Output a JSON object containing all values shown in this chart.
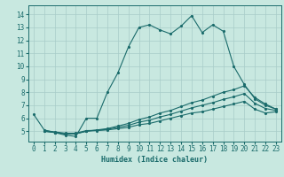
{
  "xlabel": "Humidex (Indice chaleur)",
  "xlim": [
    -0.5,
    23.5
  ],
  "ylim": [
    4.2,
    14.7
  ],
  "yticks": [
    5,
    6,
    7,
    8,
    9,
    10,
    11,
    12,
    13,
    14
  ],
  "xticks": [
    0,
    1,
    2,
    3,
    4,
    5,
    6,
    7,
    8,
    9,
    10,
    11,
    12,
    13,
    14,
    15,
    16,
    17,
    18,
    19,
    20,
    21,
    22,
    23
  ],
  "background_color": "#c8e8e0",
  "line_color": "#1a6b6b",
  "grid_color": "#a8ccc8",
  "curves": [
    {
      "x": [
        0,
        1,
        2,
        3,
        4,
        5,
        6,
        7,
        8,
        9,
        10,
        11,
        12,
        13,
        14,
        15,
        16,
        17,
        18,
        19,
        20,
        21,
        22,
        23
      ],
      "y": [
        6.3,
        5.1,
        4.9,
        4.7,
        4.6,
        6.0,
        6.0,
        8.0,
        9.5,
        11.5,
        13.0,
        13.2,
        12.8,
        12.5,
        13.1,
        13.9,
        12.6,
        13.2,
        12.7,
        10.0,
        8.6,
        7.5,
        7.0,
        6.7
      ]
    },
    {
      "x": [
        1,
        2,
        3,
        4,
        5,
        6,
        7,
        8,
        9,
        10,
        11,
        12,
        13,
        14,
        15,
        16,
        17,
        18,
        19,
        20,
        21,
        22,
        23
      ],
      "y": [
        5.0,
        4.9,
        4.8,
        4.8,
        5.0,
        5.1,
        5.2,
        5.4,
        5.6,
        5.9,
        6.1,
        6.4,
        6.6,
        6.9,
        7.2,
        7.4,
        7.7,
        8.0,
        8.2,
        8.5,
        7.6,
        7.1,
        6.7
      ]
    },
    {
      "x": [
        1,
        2,
        3,
        4,
        5,
        6,
        7,
        8,
        9,
        10,
        11,
        12,
        13,
        14,
        15,
        16,
        17,
        18,
        19,
        20,
        21,
        22,
        23
      ],
      "y": [
        5.0,
        4.9,
        4.8,
        4.8,
        5.0,
        5.05,
        5.1,
        5.2,
        5.3,
        5.5,
        5.6,
        5.8,
        6.0,
        6.2,
        6.4,
        6.5,
        6.7,
        6.9,
        7.1,
        7.3,
        6.7,
        6.4,
        6.5
      ]
    },
    {
      "x": [
        1,
        2,
        3,
        4,
        5,
        6,
        7,
        8,
        9,
        10,
        11,
        12,
        13,
        14,
        15,
        16,
        17,
        18,
        19,
        20,
        21,
        22,
        23
      ],
      "y": [
        5.05,
        4.95,
        4.85,
        4.85,
        5.05,
        5.07,
        5.15,
        5.3,
        5.45,
        5.7,
        5.85,
        6.1,
        6.3,
        6.55,
        6.8,
        7.0,
        7.2,
        7.45,
        7.65,
        7.9,
        7.15,
        6.75,
        6.6
      ]
    }
  ]
}
